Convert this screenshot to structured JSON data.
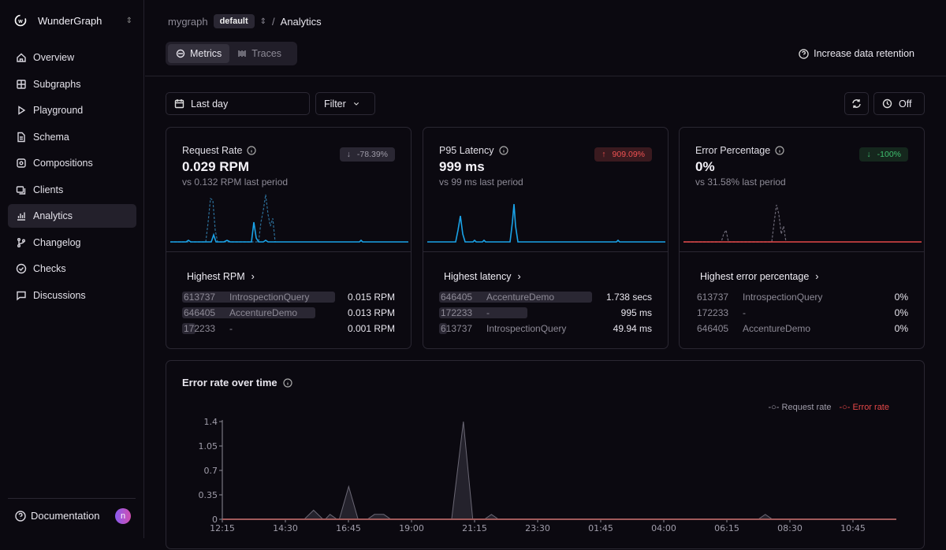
{
  "sidebar": {
    "brand": "WunderGraph",
    "items": [
      {
        "label": "Overview",
        "icon": "home-icon"
      },
      {
        "label": "Subgraphs",
        "icon": "grid-icon"
      },
      {
        "label": "Playground",
        "icon": "play-icon"
      },
      {
        "label": "Schema",
        "icon": "file-icon"
      },
      {
        "label": "Compositions",
        "icon": "compositions-icon"
      },
      {
        "label": "Clients",
        "icon": "clients-icon"
      },
      {
        "label": "Analytics",
        "icon": "bar-chart-icon",
        "active": true
      },
      {
        "label": "Changelog",
        "icon": "git-branch-icon"
      },
      {
        "label": "Checks",
        "icon": "check-circle-icon"
      },
      {
        "label": "Discussions",
        "icon": "message-icon"
      }
    ],
    "footer": {
      "label": "Documentation",
      "avatar": "n"
    }
  },
  "header": {
    "graph": "mygraph",
    "namespace": "default",
    "separator": "/",
    "page": "Analytics",
    "tabs": [
      {
        "label": "Metrics",
        "active": true
      },
      {
        "label": "Traces"
      }
    ],
    "retention": "Increase data retention"
  },
  "toolbar": {
    "date_range": "Last day",
    "filter": "Filter",
    "refresh": "Off"
  },
  "cards": [
    {
      "title": "Request Rate",
      "value": "0.029 RPM",
      "sub": "vs 0.132 RPM last period",
      "delta": "-78.39%",
      "delta_dir": "down",
      "delta_color": "#9e9ba8",
      "delta_bg": "#2a2733",
      "line_color": "#1aa3e8",
      "highlight": "Highest RPM",
      "rows": [
        {
          "id": "613737",
          "op": "IntrospectionQuery",
          "value": "0.015 RPM",
          "share": 1
        },
        {
          "id": "646405",
          "op": "AccentureDemo",
          "value": "0.013 RPM",
          "share": 0.87
        },
        {
          "id": "172233",
          "op": "-",
          "value": "0.001 RPM",
          "share": 0.07
        }
      ]
    },
    {
      "title": "P95 Latency",
      "value": "999 ms",
      "sub": "vs 99 ms last period",
      "delta": "909.09%",
      "delta_dir": "up",
      "delta_color": "#f05252",
      "delta_bg": "#3a1a1f",
      "line_color": "#1aa3e8",
      "highlight": "Highest latency",
      "rows": [
        {
          "id": "646405",
          "op": "AccentureDemo",
          "value": "1.738 secs",
          "share": 1
        },
        {
          "id": "172233",
          "op": "-",
          "value": "995 ms",
          "share": 0.57
        },
        {
          "id": "613737",
          "op": "IntrospectionQuery",
          "value": "49.94 ms",
          "share": 0.03
        }
      ]
    },
    {
      "title": "Error Percentage",
      "value": "0%",
      "sub": "vs 31.58% last period",
      "delta": "-100%",
      "delta_dir": "down",
      "delta_color": "#3fbf6f",
      "delta_bg": "#15271d",
      "line_color": "#e54848",
      "highlight": "Highest error percentage",
      "rows": [
        {
          "id": "613737",
          "op": "IntrospectionQuery",
          "value": "0%",
          "share": 0
        },
        {
          "id": "172233",
          "op": "-",
          "value": "0%",
          "share": 0
        },
        {
          "id": "646405",
          "op": "AccentureDemo",
          "value": "0%",
          "share": 0
        }
      ]
    }
  ],
  "chart_data": {
    "type": "area",
    "title": "Error rate over time",
    "ylim": [
      0,
      1.4
    ],
    "yticks": [
      "0",
      "0.35",
      "0.7",
      "1.05",
      "1.4"
    ],
    "xticks": [
      "12:15",
      "14:30",
      "16:45",
      "19:00",
      "21:15",
      "23:30",
      "01:45",
      "04:00",
      "06:15",
      "08:30",
      "10:45"
    ],
    "legend_placement": "top-right",
    "series": [
      {
        "name": "Request rate",
        "color": "#8d8a96",
        "points": [
          [
            "12:15",
            0
          ],
          [
            "15:10",
            0
          ],
          [
            "15:30",
            0.13
          ],
          [
            "15:50",
            0
          ],
          [
            "15:55",
            0
          ],
          [
            "16:05",
            0.07
          ],
          [
            "16:20",
            0
          ],
          [
            "16:25",
            0
          ],
          [
            "16:45",
            0.47
          ],
          [
            "17:05",
            0
          ],
          [
            "17:25",
            0
          ],
          [
            "17:40",
            0.07
          ],
          [
            "18:00",
            0.07
          ],
          [
            "18:15",
            0
          ],
          [
            "20:25",
            0
          ],
          [
            "20:50",
            1.4
          ],
          [
            "21:10",
            0
          ],
          [
            "21:35",
            0
          ],
          [
            "21:50",
            0.07
          ],
          [
            "22:05",
            0
          ],
          [
            "07:20",
            0
          ],
          [
            "07:35",
            0.07
          ],
          [
            "07:50",
            0
          ],
          [
            "12:15",
            0
          ]
        ]
      },
      {
        "name": "Error rate",
        "color": "#e54848",
        "points": [
          [
            "12:15",
            0
          ],
          [
            "12:15",
            0
          ]
        ]
      }
    ]
  }
}
